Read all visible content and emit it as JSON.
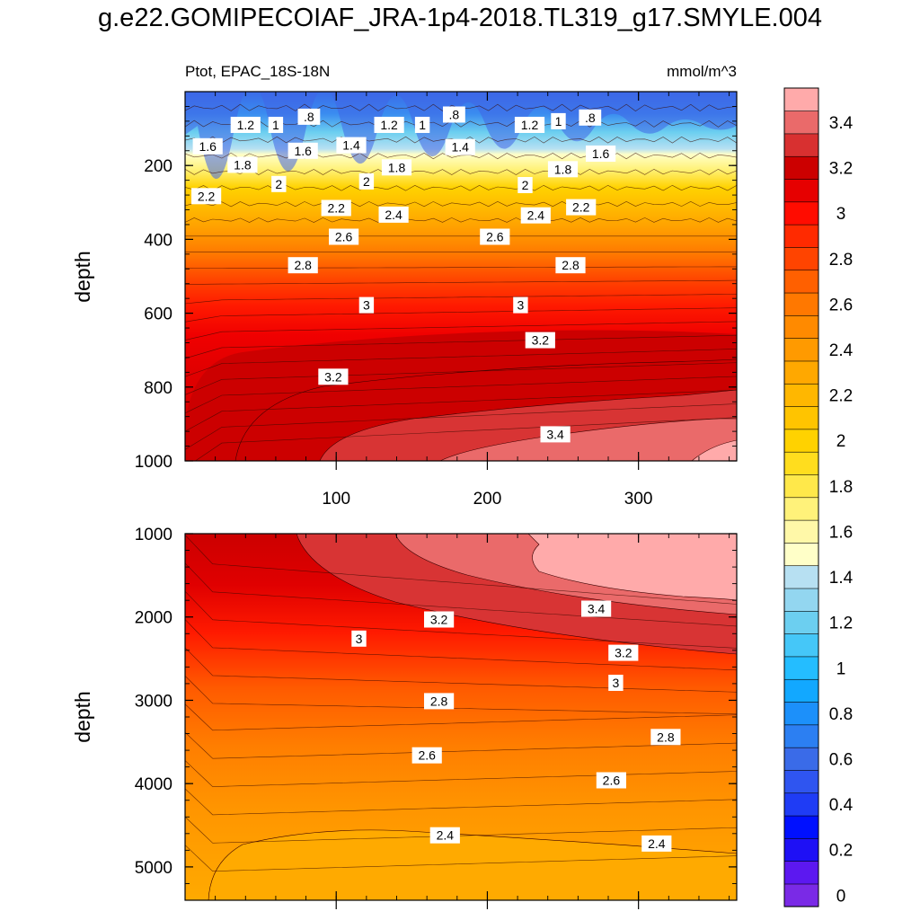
{
  "title": "g.e22.GOMIPECOIAF_JRA-1p4-2018.TL319_g17.SMYLE.004",
  "chart_data": {
    "type": "heatmap",
    "variable_label": "Ptot, EPAC_18S-18N",
    "units": "mmol/m^3",
    "ylabel": "depth",
    "xlabel": "",
    "xlim": [
      0,
      365
    ],
    "x_ticks": [
      100,
      200,
      300
    ],
    "colorbar": {
      "labels": [
        "0",
        "0.2",
        "0.4",
        "0.6",
        "0.8",
        "1",
        "1.2",
        "1.4",
        "1.6",
        "1.8",
        "2",
        "2.2",
        "2.4",
        "2.6",
        "2.8",
        "3",
        "3.2",
        "3.4"
      ],
      "levels": [
        0,
        0.1,
        0.2,
        0.3,
        0.4,
        0.5,
        0.6,
        0.7,
        0.8,
        0.9,
        1.0,
        1.1,
        1.2,
        1.3,
        1.4,
        1.5,
        1.6,
        1.7,
        1.8,
        1.9,
        2.0,
        2.1,
        2.2,
        2.3,
        2.4,
        2.5,
        2.6,
        2.7,
        2.8,
        2.9,
        3.0,
        3.1,
        3.2,
        3.3,
        3.4,
        3.5
      ],
      "colors": [
        "#7a2ae6",
        "#5c18f0",
        "#1e10f5",
        "#0010ff",
        "#1f3cf5",
        "#2f55f0",
        "#3a6be8",
        "#2c7ff2",
        "#1c90fa",
        "#12a8ff",
        "#24bdff",
        "#45c7f8",
        "#6ccff0",
        "#93d6f0",
        "#b7e0f2",
        "#ffffc8",
        "#fff8a8",
        "#fff27a",
        "#ffe84a",
        "#ffdd1e",
        "#ffd200",
        "#ffc400",
        "#ffb700",
        "#ffa800",
        "#ff9a00",
        "#ff8a00",
        "#ff7800",
        "#ff6000",
        "#ff4400",
        "#ff2a00",
        "#ff0c00",
        "#e60000",
        "#cc0000",
        "#d83030",
        "#ea6a6a",
        "#ffaaaa"
      ]
    },
    "panels": [
      {
        "name": "upper",
        "ylim": [
          0,
          1000
        ],
        "y_ticks": [
          200,
          400,
          600,
          800,
          1000
        ],
        "contour_labels": [
          {
            "text": "1.2",
            "x": 40,
            "y": 90
          },
          {
            "text": "1",
            "x": 60,
            "y": 90
          },
          {
            "text": ".8",
            "x": 82,
            "y": 68
          },
          {
            "text": "1.6",
            "x": 15,
            "y": 148
          },
          {
            "text": "1.6",
            "x": 78,
            "y": 160
          },
          {
            "text": "1.4",
            "x": 110,
            "y": 145
          },
          {
            "text": "1.8",
            "x": 38,
            "y": 198
          },
          {
            "text": "1.2",
            "x": 135,
            "y": 90
          },
          {
            "text": "1",
            "x": 157,
            "y": 90
          },
          {
            "text": ".8",
            "x": 178,
            "y": 62
          },
          {
            "text": "1.4",
            "x": 182,
            "y": 150
          },
          {
            "text": "1.2",
            "x": 228,
            "y": 90
          },
          {
            "text": "1",
            "x": 247,
            "y": 80
          },
          {
            "text": ".8",
            "x": 268,
            "y": 70
          },
          {
            "text": "1.6",
            "x": 275,
            "y": 168
          },
          {
            "text": "1.8",
            "x": 250,
            "y": 210
          },
          {
            "text": "2",
            "x": 62,
            "y": 250
          },
          {
            "text": "2.2",
            "x": 14,
            "y": 283
          },
          {
            "text": "2",
            "x": 120,
            "y": 243
          },
          {
            "text": "1.8",
            "x": 140,
            "y": 205
          },
          {
            "text": "2.2",
            "x": 100,
            "y": 315
          },
          {
            "text": "2.4",
            "x": 138,
            "y": 333
          },
          {
            "text": "2",
            "x": 225,
            "y": 253
          },
          {
            "text": "2.4",
            "x": 232,
            "y": 335
          },
          {
            "text": "2.2",
            "x": 262,
            "y": 313
          },
          {
            "text": "2.6",
            "x": 105,
            "y": 393
          },
          {
            "text": "2.6",
            "x": 205,
            "y": 393
          },
          {
            "text": "2.8",
            "x": 78,
            "y": 470
          },
          {
            "text": "2.8",
            "x": 255,
            "y": 470
          },
          {
            "text": "3",
            "x": 120,
            "y": 578
          },
          {
            "text": "3",
            "x": 222,
            "y": 578
          },
          {
            "text": "3.2",
            "x": 235,
            "y": 673
          },
          {
            "text": "3.2",
            "x": 98,
            "y": 772
          },
          {
            "text": "3.4",
            "x": 245,
            "y": 928
          }
        ]
      },
      {
        "name": "lower",
        "ylim": [
          1000,
          5400
        ],
        "y_ticks": [
          1000,
          2000,
          3000,
          4000,
          5000
        ],
        "contour_labels": [
          {
            "text": "3.2",
            "x": 168,
            "y": 2030
          },
          {
            "text": "3",
            "x": 115,
            "y": 2260
          },
          {
            "text": "3.4",
            "x": 272,
            "y": 1900
          },
          {
            "text": "3.2",
            "x": 290,
            "y": 2430
          },
          {
            "text": "3",
            "x": 285,
            "y": 2790
          },
          {
            "text": "2.8",
            "x": 168,
            "y": 3010
          },
          {
            "text": "2.8",
            "x": 318,
            "y": 3440
          },
          {
            "text": "2.6",
            "x": 160,
            "y": 3660
          },
          {
            "text": "2.6",
            "x": 282,
            "y": 3960
          },
          {
            "text": "2.4",
            "x": 172,
            "y": 4620
          },
          {
            "text": "2.4",
            "x": 312,
            "y": 4720
          }
        ]
      }
    ]
  }
}
